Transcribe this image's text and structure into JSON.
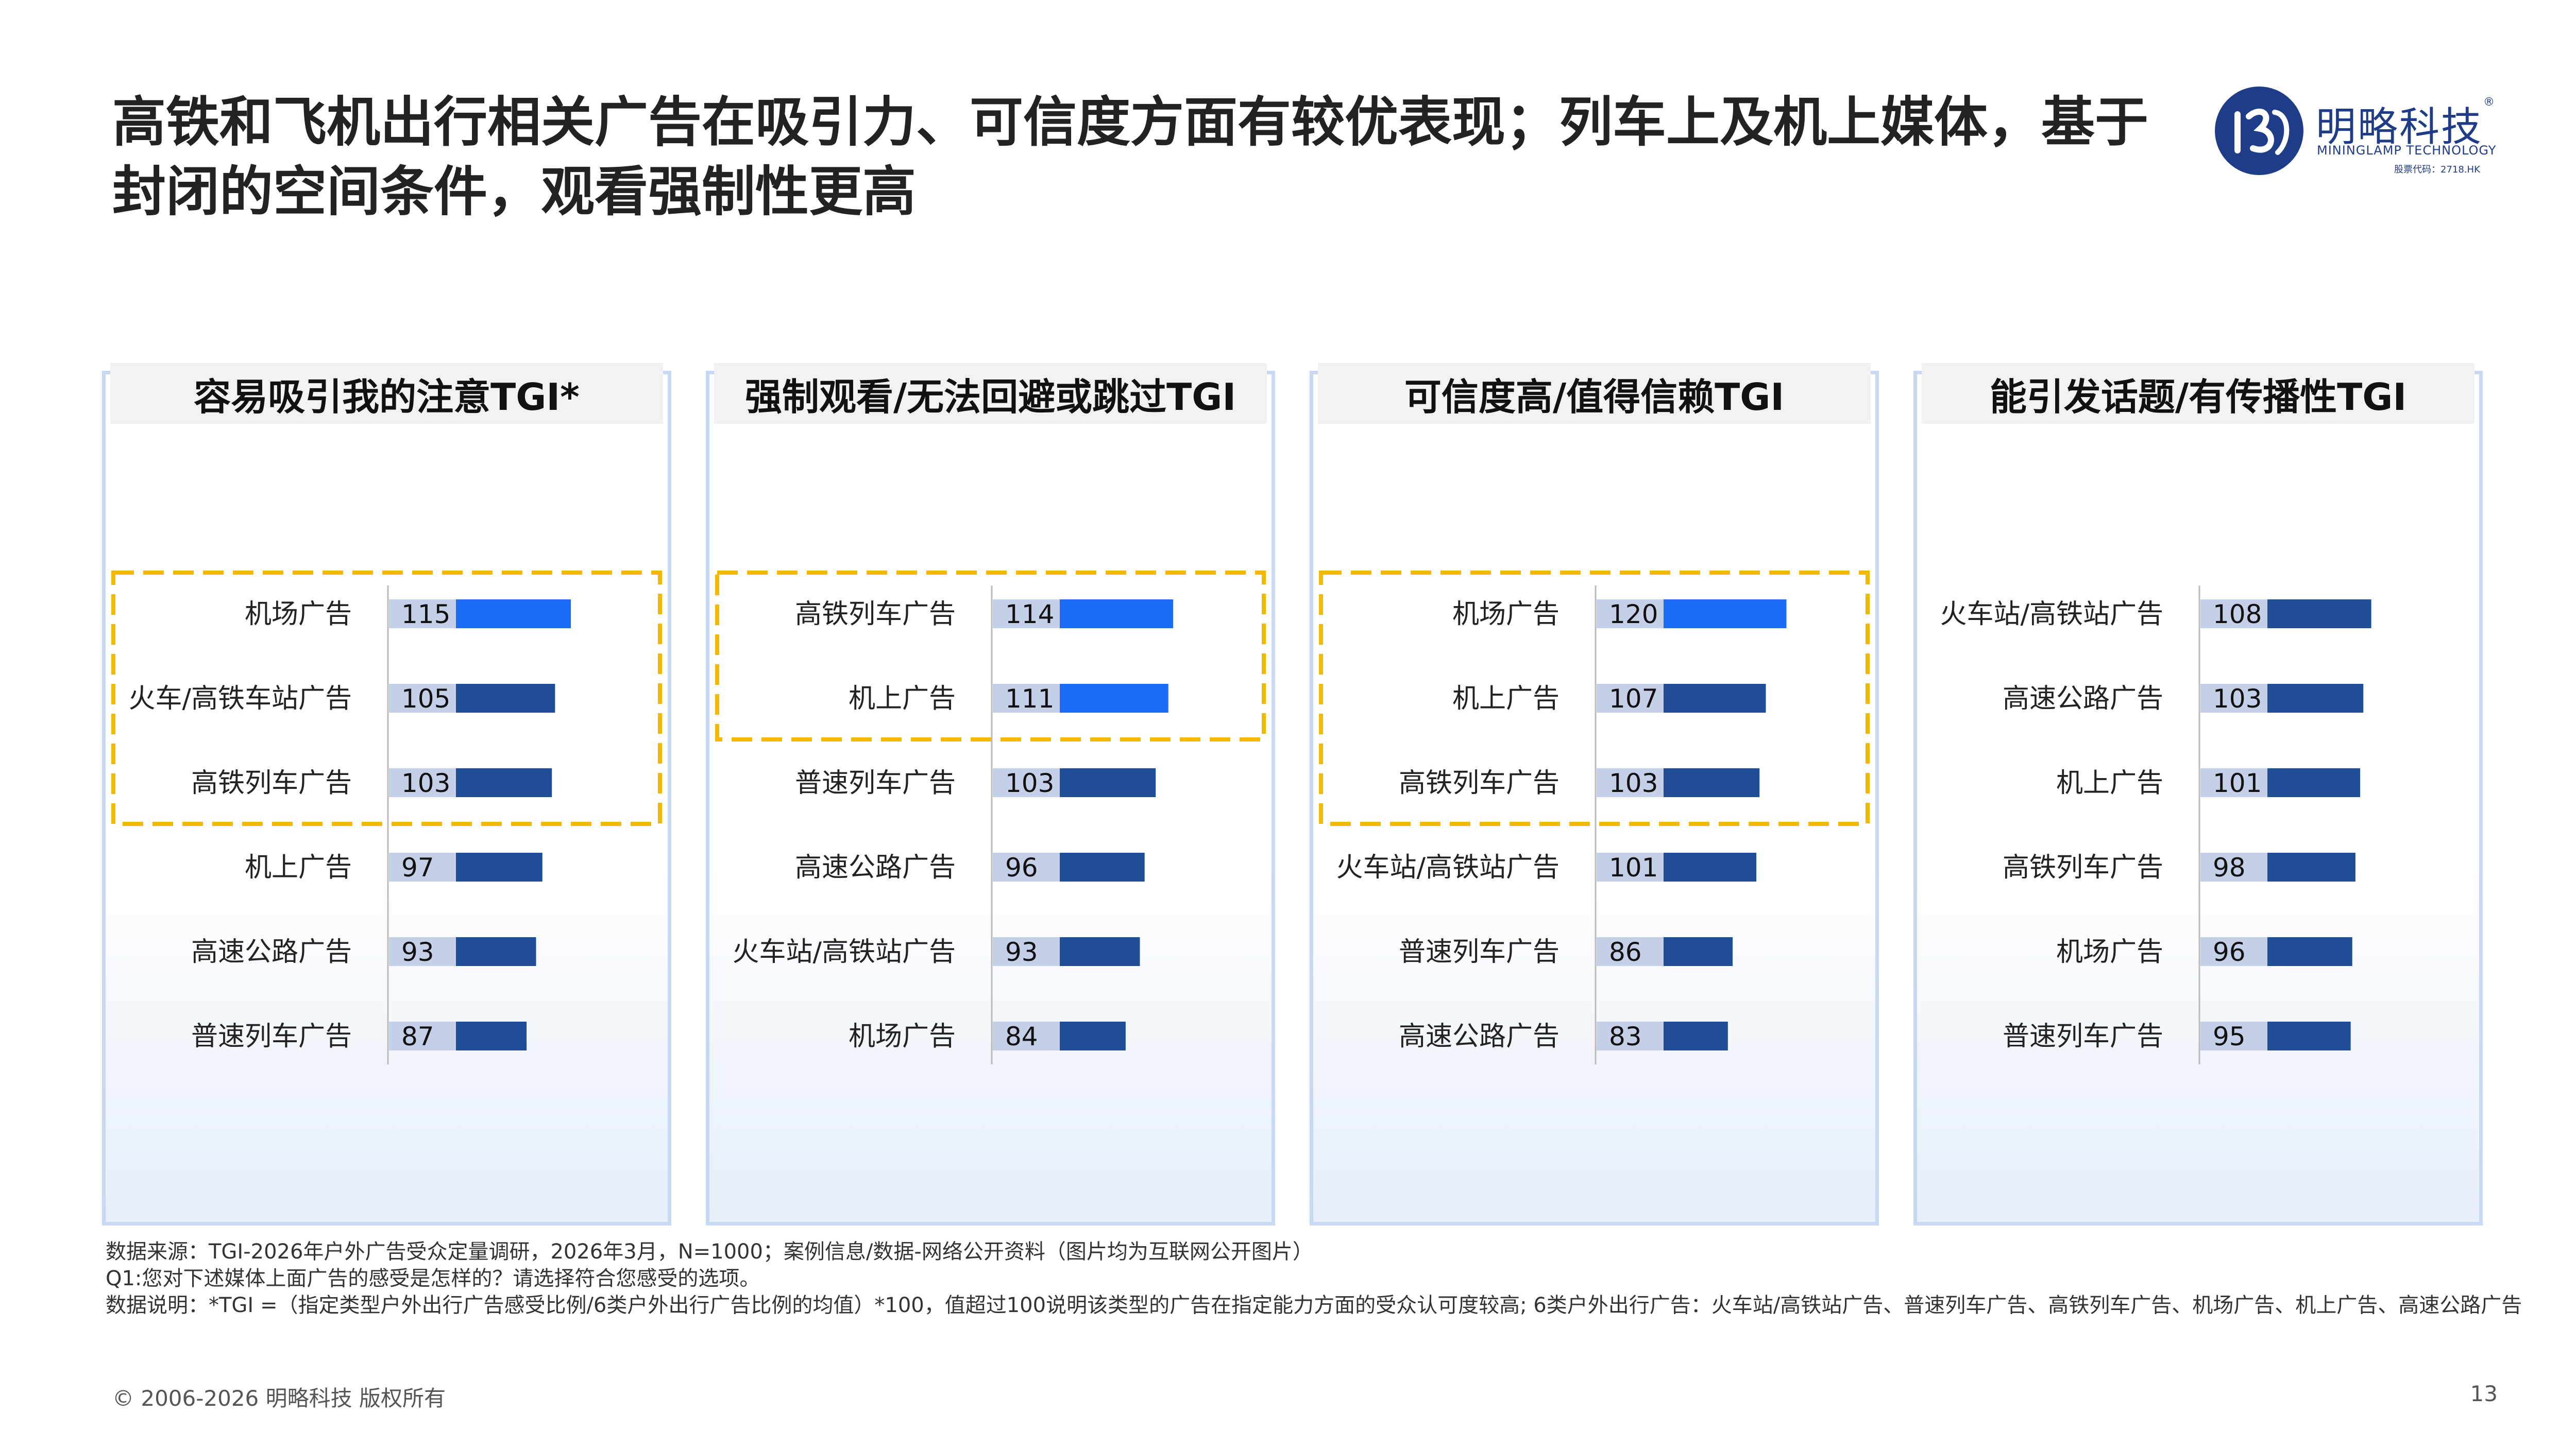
{
  "title": "高铁和飞机出行相关广告在吸引力、可信度方面有较优表现；列车上及机上媒体，基于封闭的空间条件，观看强制性更高",
  "logo": {
    "name_cn": "明略科技",
    "registered": "®",
    "name_en": "MININGLAMP TECHNOLOGY",
    "stock_code": "股票代码：2718.HK"
  },
  "colors": {
    "highlight_bar": "#1a6cf5",
    "normal_bar": "#1f4e96",
    "value_box": "#c3d0e8",
    "dashed_box": "#f5b800"
  },
  "chart_data": [
    {
      "type": "bar",
      "orientation": "horizontal",
      "title": "容易吸引我的注意TGI*",
      "categories": [
        "机场广告",
        "火车/高铁车站广告",
        "高铁列车广告",
        "机上广告",
        "高速公路广告",
        "普速列车广告"
      ],
      "values": [
        115,
        105,
        103,
        97,
        93,
        87
      ],
      "highlight_indices": [
        0
      ],
      "boxed_indices": [
        0,
        1,
        2
      ]
    },
    {
      "type": "bar",
      "orientation": "horizontal",
      "title": "强制观看/无法回避或跳过TGI",
      "categories": [
        "高铁列车广告",
        "机上广告",
        "普速列车广告",
        "高速公路广告",
        "火车站/高铁站广告",
        "机场广告"
      ],
      "values": [
        114,
        111,
        103,
        96,
        93,
        84
      ],
      "highlight_indices": [
        0,
        1
      ],
      "boxed_indices": [
        0,
        1
      ]
    },
    {
      "type": "bar",
      "orientation": "horizontal",
      "title": "可信度高/值得信赖TGI",
      "categories": [
        "机场广告",
        "机上广告",
        "高铁列车广告",
        "火车站/高铁站广告",
        "普速列车广告",
        "高速公路广告"
      ],
      "values": [
        120,
        107,
        103,
        101,
        86,
        83
      ],
      "highlight_indices": [
        0
      ],
      "boxed_indices": [
        0,
        1,
        2
      ]
    },
    {
      "type": "bar",
      "orientation": "horizontal",
      "title": "能引发话题/有传播性TGI",
      "categories": [
        "火车站/高铁站广告",
        "高速公路广告",
        "机上广告",
        "高铁列车广告",
        "机场广告",
        "普速列车广告"
      ],
      "values": [
        108,
        103,
        101,
        98,
        96,
        95
      ],
      "highlight_indices": [],
      "boxed_indices": []
    }
  ],
  "footnotes": [
    "数据来源：TGI-2026年户外广告受众定量调研，2026年3月，N=1000；案例信息/数据-网络公开资料（图片均为互联网公开图片）",
    "Q1:您对下述媒体上面广告的感受是怎样的？请选择符合您感受的选项。",
    "数据说明：*TGI =（指定类型户外出行广告感受比例/6类户外出行广告比例的均值）*100，值超过100说明该类型的广告在指定能力方面的受众认可度较高; 6类户外出行广告：火车站/高铁站广告、普速列车广告、高铁列车广告、机场广告、机上广告、高速公路广告"
  ],
  "copyright": "© 2006-2026 明略科技 版权所有",
  "page_number": "13"
}
